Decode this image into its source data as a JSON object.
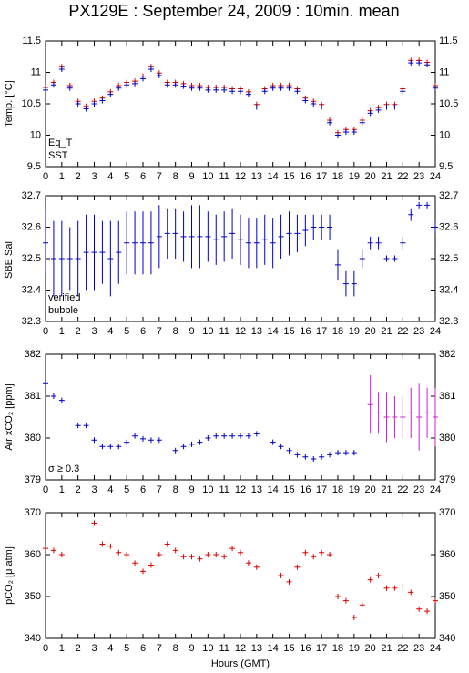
{
  "chart_data": [
    {
      "type": "scatter",
      "title": "PX129E : September 24, 2009 : 10min. mean",
      "ylabel": "Temp. [°C]",
      "xlim": [
        0,
        24
      ],
      "xticks": [
        0,
        1,
        2,
        3,
        4,
        5,
        6,
        7,
        8,
        9,
        10,
        11,
        12,
        13,
        14,
        15,
        16,
        17,
        18,
        19,
        20,
        21,
        22,
        23,
        24
      ],
      "ylim": [
        9.5,
        11.5
      ],
      "yticks": [
        9.5,
        10,
        10.5,
        11,
        11.5
      ],
      "series": [
        {
          "name": "Eq_T",
          "color": "#dd0000",
          "x": [
            0,
            0.5,
            1,
            1.5,
            2,
            2.5,
            3,
            3.5,
            4,
            4.5,
            5,
            5.5,
            6,
            6.5,
            7,
            7.5,
            8,
            8.5,
            9,
            9.5,
            10,
            10.5,
            11,
            11.5,
            12,
            12.5,
            13,
            13.5,
            14,
            14.5,
            15,
            15.5,
            16,
            16.5,
            17,
            17.5,
            18,
            18.5,
            19,
            19.5,
            20,
            20.5,
            21,
            21.5,
            22,
            22.5,
            23,
            23.5,
            24
          ],
          "values": [
            10.76,
            10.84,
            11.09,
            10.79,
            10.54,
            10.46,
            10.54,
            10.59,
            10.69,
            10.79,
            10.84,
            10.86,
            10.94,
            11.09,
            10.99,
            10.84,
            10.84,
            10.82,
            10.79,
            10.79,
            10.76,
            10.76,
            10.76,
            10.74,
            10.74,
            10.69,
            10.49,
            10.74,
            10.79,
            10.79,
            10.79,
            10.74,
            10.59,
            10.54,
            10.49,
            10.24,
            10.04,
            10.09,
            10.09,
            10.24,
            10.39,
            10.44,
            10.49,
            10.49,
            10.74,
            11.19,
            11.19,
            11.16,
            10.79
          ]
        },
        {
          "name": "SST",
          "color": "#0000cc",
          "x": [
            0,
            0.5,
            1,
            1.5,
            2,
            2.5,
            3,
            3.5,
            4,
            4.5,
            5,
            5.5,
            6,
            6.5,
            7,
            7.5,
            8,
            8.5,
            9,
            9.5,
            10,
            10.5,
            11,
            11.5,
            12,
            12.5,
            13,
            13.5,
            14,
            14.5,
            15,
            15.5,
            16,
            16.5,
            17,
            17.5,
            18,
            18.5,
            19,
            19.5,
            20,
            20.5,
            21,
            21.5,
            22,
            22.5,
            23,
            23.5,
            24
          ],
          "values": [
            10.72,
            10.8,
            11.05,
            10.75,
            10.5,
            10.42,
            10.5,
            10.55,
            10.65,
            10.75,
            10.8,
            10.82,
            10.9,
            11.05,
            10.95,
            10.8,
            10.8,
            10.78,
            10.75,
            10.75,
            10.72,
            10.72,
            10.72,
            10.7,
            10.7,
            10.65,
            10.45,
            10.7,
            10.75,
            10.75,
            10.75,
            10.7,
            10.55,
            10.5,
            10.45,
            10.2,
            10.0,
            10.05,
            10.05,
            10.2,
            10.35,
            10.4,
            10.45,
            10.45,
            10.7,
            11.15,
            11.15,
            11.12,
            10.75
          ]
        }
      ]
    },
    {
      "type": "scatter",
      "ylabel": "SBE Sal.",
      "xlim": [
        0,
        24
      ],
      "xticks": [
        0,
        1,
        2,
        3,
        4,
        5,
        6,
        7,
        8,
        9,
        10,
        11,
        12,
        13,
        14,
        15,
        16,
        17,
        18,
        19,
        20,
        21,
        22,
        23,
        24
      ],
      "ylim": [
        32.3,
        32.7
      ],
      "yticks": [
        32.3,
        32.4,
        32.5,
        32.6,
        32.7
      ],
      "series": [
        {
          "name": "verified",
          "color": "#0000cc",
          "x": [
            0,
            0.5,
            1,
            1.5,
            2,
            2.5,
            3,
            3.5,
            4,
            4.5,
            5,
            5.5,
            6,
            6.5,
            7,
            7.5,
            8,
            8.5,
            9,
            9.5,
            10,
            10.5,
            11,
            11.5,
            12,
            12.5,
            13,
            13.5,
            14,
            14.5,
            15,
            15.5,
            16,
            16.5,
            17,
            17.5,
            18,
            18.5,
            19,
            19.5,
            20,
            20.5,
            21,
            21.5,
            22,
            22.5,
            23,
            23.5,
            24
          ],
          "values": [
            32.55,
            32.5,
            32.5,
            32.5,
            32.5,
            32.52,
            32.52,
            32.52,
            32.5,
            32.52,
            32.55,
            32.55,
            32.55,
            32.55,
            32.57,
            32.58,
            32.58,
            32.57,
            32.57,
            32.57,
            32.57,
            32.56,
            32.57,
            32.58,
            32.56,
            32.55,
            32.55,
            32.56,
            32.55,
            32.57,
            32.58,
            32.58,
            32.59,
            32.6,
            32.6,
            32.6,
            32.48,
            32.42,
            32.42,
            32.5,
            32.55,
            32.55,
            32.5,
            32.5,
            32.55,
            32.64,
            32.67,
            32.67,
            32.6
          ],
          "errors": [
            0.1,
            0.12,
            0.12,
            0.1,
            0.12,
            0.12,
            0.12,
            0.1,
            0.12,
            0.1,
            0.1,
            0.1,
            0.1,
            0.1,
            0.1,
            0.08,
            0.08,
            0.08,
            0.1,
            0.1,
            0.08,
            0.08,
            0.08,
            0.08,
            0.08,
            0.08,
            0.08,
            0.08,
            0.08,
            0.07,
            0.07,
            0.06,
            0.05,
            0.04,
            0.04,
            0.04,
            0.05,
            0.04,
            0.04,
            0.03,
            0.02,
            0.02,
            0.01,
            0.01,
            0.02,
            0.02,
            0.01,
            0.01,
            0.02
          ]
        },
        {
          "name": "bubble",
          "color": "#cc22cc",
          "x": [],
          "values": []
        }
      ]
    },
    {
      "type": "scatter",
      "ylabel": "Air xCO₂ [ppm]",
      "xlim": [
        0,
        24
      ],
      "xticks": [
        0,
        1,
        2,
        3,
        4,
        5,
        6,
        7,
        8,
        9,
        10,
        11,
        12,
        13,
        14,
        15,
        16,
        17,
        18,
        19,
        20,
        21,
        22,
        23,
        24
      ],
      "ylim": [
        379,
        382
      ],
      "yticks": [
        379,
        380,
        381,
        382
      ],
      "series": [
        {
          "color": "#0000cc",
          "x": [
            0,
            0.5,
            1,
            2,
            2.5,
            3,
            3.5,
            4,
            4.5,
            5,
            5.5,
            6,
            6.5,
            7,
            8,
            8.5,
            9,
            9.5,
            10,
            10.5,
            11,
            11.5,
            12,
            12.5,
            13,
            14,
            14.5,
            15,
            15.5,
            16,
            16.5,
            17,
            17.5,
            18,
            18.5,
            19
          ],
          "values": [
            381.3,
            381.0,
            380.9,
            380.3,
            380.3,
            379.95,
            379.8,
            379.8,
            379.8,
            379.9,
            380.05,
            379.98,
            379.95,
            379.95,
            379.7,
            379.8,
            379.85,
            379.9,
            380.0,
            380.05,
            380.05,
            380.05,
            380.05,
            380.05,
            380.1,
            379.9,
            379.8,
            379.7,
            379.6,
            379.55,
            379.5,
            379.55,
            379.6,
            379.65,
            379.65,
            379.65
          ]
        },
        {
          "name": "σ ≥ 0.3",
          "color": "#cc22cc",
          "x": [
            20,
            20.5,
            21,
            21.5,
            22,
            22.5,
            23,
            23.5,
            24
          ],
          "values": [
            380.8,
            380.6,
            380.5,
            380.5,
            380.5,
            380.6,
            380.5,
            380.6,
            380.5
          ],
          "errors": [
            0.7,
            0.5,
            0.6,
            0.5,
            0.5,
            0.6,
            0.8,
            0.6,
            0.7
          ]
        }
      ]
    },
    {
      "type": "scatter",
      "ylabel": "pCO₂ [μ atm]",
      "xlabel": "Hours (GMT)",
      "xlim": [
        0,
        24
      ],
      "xticks": [
        0,
        1,
        2,
        3,
        4,
        5,
        6,
        7,
        8,
        9,
        10,
        11,
        12,
        13,
        14,
        15,
        16,
        17,
        18,
        19,
        20,
        21,
        22,
        23,
        24
      ],
      "ylim": [
        340,
        370
      ],
      "yticks": [
        340,
        350,
        360,
        370
      ],
      "series": [
        {
          "color": "#dd0000",
          "x": [
            0,
            0.5,
            1,
            3,
            3.5,
            4,
            4.5,
            5,
            5.5,
            6,
            6.5,
            7,
            7.5,
            8,
            8.5,
            9,
            9.5,
            10,
            10.5,
            11,
            11.5,
            12,
            12.5,
            13,
            14.5,
            15,
            15.5,
            16,
            16.5,
            17,
            17.5,
            18,
            18.5,
            19,
            19.5,
            20,
            20.5,
            21,
            21.5,
            22,
            22.5,
            23,
            23.5,
            24
          ],
          "values": [
            361.5,
            361,
            360,
            367.5,
            362.5,
            362,
            360.5,
            360,
            358,
            356,
            357.5,
            360,
            362.5,
            361,
            359.5,
            359.5,
            359,
            360,
            360,
            359.5,
            361.5,
            360.5,
            358,
            357,
            355,
            353.5,
            357,
            360.5,
            359.5,
            360.5,
            360,
            350,
            349,
            345,
            348,
            354,
            355,
            352,
            352,
            352.5,
            351,
            347,
            346.5,
            349
          ]
        }
      ]
    }
  ]
}
